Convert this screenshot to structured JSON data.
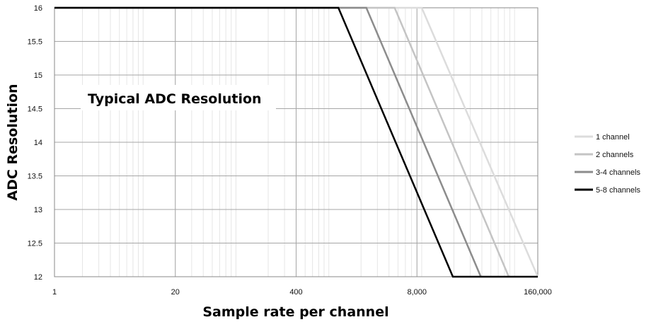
{
  "chart_data": {
    "type": "line",
    "title": "Typical ADC Resolution",
    "xlabel": "Sample rate per channel",
    "ylabel": "ADC Resolution",
    "xscale": "log",
    "xlim": [
      1,
      160000
    ],
    "ylim": [
      12,
      16
    ],
    "x_tick_labels": [
      "1",
      "20",
      "400",
      "8,000",
      "160,000"
    ],
    "x_tick_values": [
      1,
      20,
      400,
      8000,
      160000
    ],
    "y_tick_labels": [
      "12",
      "12.5",
      "13",
      "13.5",
      "14",
      "14.5",
      "15",
      "15.5",
      "16"
    ],
    "y_tick_values": [
      12,
      12.5,
      13,
      13.5,
      14,
      14.5,
      15,
      15.5,
      16
    ],
    "grid": true,
    "legend_position": "right",
    "series": [
      {
        "name": "1 channel",
        "color": "#dcdcdc",
        "points": [
          [
            1,
            16
          ],
          [
            9000,
            16
          ],
          [
            160000,
            12
          ]
        ]
      },
      {
        "name": "2 channels",
        "color": "#c4c4c4",
        "points": [
          [
            1,
            16
          ],
          [
            4600,
            16
          ],
          [
            78000,
            12
          ]
        ]
      },
      {
        "name": "3-4 channels",
        "color": "#8c8c8c",
        "points": [
          [
            1,
            16
          ],
          [
            2280,
            16
          ],
          [
            39000,
            12
          ]
        ]
      },
      {
        "name": "5-8 channels",
        "color": "#000000",
        "points": [
          [
            1,
            16
          ],
          [
            1140,
            16
          ],
          [
            19500,
            12
          ],
          [
            160000,
            12
          ]
        ]
      }
    ]
  }
}
